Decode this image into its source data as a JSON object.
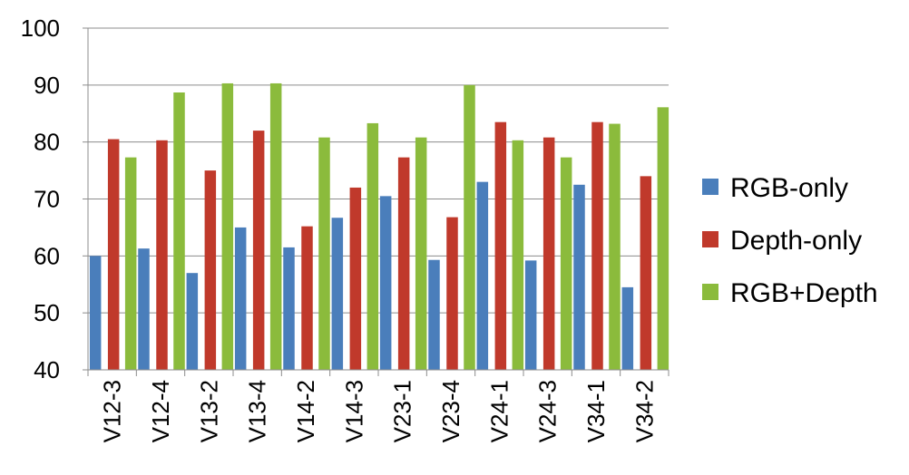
{
  "chart_data": {
    "type": "bar",
    "title": "",
    "xlabel": "",
    "ylabel": "",
    "ylim": [
      40,
      100
    ],
    "yticks": [
      40,
      50,
      60,
      70,
      80,
      90,
      100
    ],
    "categories": [
      "V12-3",
      "V12-4",
      "V13-2",
      "V13-4",
      "V14-2",
      "V14-3",
      "V23-1",
      "V23-4",
      "V24-1",
      "V24-3",
      "V34-1",
      "V34-2"
    ],
    "series": [
      {
        "name": "RGB-only",
        "color": "#4a7ebb",
        "values": [
          60.0,
          61.3,
          57.0,
          65.0,
          61.5,
          66.7,
          70.5,
          59.3,
          73.0,
          59.2,
          72.5,
          54.5
        ]
      },
      {
        "name": "Depth-only",
        "color": "#c0392b",
        "values": [
          80.5,
          80.3,
          75.0,
          82.0,
          65.2,
          72.0,
          77.3,
          66.8,
          83.5,
          80.8,
          83.5,
          74.0
        ]
      },
      {
        "name": "RGB+Depth",
        "color": "#8bbb3c",
        "values": [
          77.3,
          88.7,
          90.3,
          90.3,
          80.8,
          83.3,
          80.8,
          90.0,
          80.3,
          77.3,
          83.2,
          86.1
        ]
      }
    ],
    "grid": true,
    "legend_position": "right"
  }
}
